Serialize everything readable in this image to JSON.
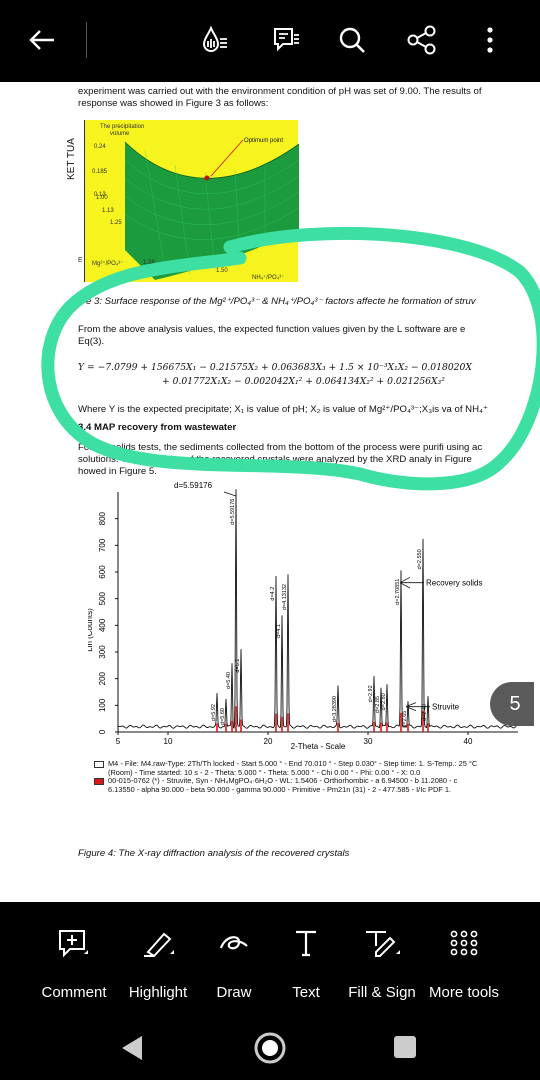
{
  "top_toolbar": {
    "back": "back-arrow",
    "icons": [
      "reading-mode",
      "comment-list",
      "search",
      "share",
      "more-vertical"
    ]
  },
  "document": {
    "intro_line1": "experiment was carried out with the environment condition of pH was set of 9.00. The results of",
    "intro_line2": "response was showed in Figure 3 as follows:",
    "surface_fig": {
      "side_label": "KET TUA",
      "zlabel_line1": "The precipitation",
      "zlabel_line2": "volume",
      "optimum_label": "Optimum point",
      "z_ticks": [
        "0.24",
        "0.185",
        "0.13"
      ],
      "xlabel": "Mg²⁺/PO₄³⁻",
      "ylabel": "NH₄⁺/PO₄³⁻",
      "e_label": "E",
      "x_ticks": [
        "1.00",
        "1.13",
        "1.25",
        "1.38"
      ],
      "y_ticks": [
        "1.00",
        "1.50"
      ]
    },
    "figure3_caption": "e 3: Surface response of the Mg²⁺/PO₄³⁻ & NH₄⁺/PO₄³⁻ factors affecte        he formation of struv",
    "para1_line1": "From the above analysis values, the expected function values given by the L      software are e",
    "para1_line2": "Eq(3).",
    "eq_line1": "Y = −7.0799 + 156675X₁ − 0.21575X₂ + 0.063683X₃ + 1.5 × 10⁻³X₁X₂ − 0.018020X",
    "eq_line2": "+ 0.01772X₁X₂ − 0.002042X₁² + 0.064134X₂² + 0.021256X₃²",
    "para2": "Where Y is the expected precipitate; X₁ is value of pH; X₂ is value of Mg²⁺/PO₄³⁻;X₃is va      of NH₄⁺",
    "section_heading": "3.4 MAP recovery from wastewater",
    "para3_line1": "For the solids tests, the sediments collected from the bottom of the process were purifi      using ac",
    "para3_line2": "solutions. The properties of the recovered crystals were analyzed by the XRD analy      in Figure",
    "para3_line3": "howed in Figure 5.",
    "legend_lines": [
      "M4 - File: M4.raw-Type: 2Th/Th locked - Start 5.000 ° - End 70.010 ° - Step 0.030° - Step time: 1. S-Temp.: 25 °C",
      "(Room) - Time started: 10 s - 2 - Theta: 5.000 ° - Theta: 5.000 ° - Chi 0.00 ° - Phi: 0.00 ° - X: 0.0",
      "00-015-0762 (*) - Struvite, Syn - NH₄MgPO₄·6H₂O - WL: 1.5406 - Orthorhombic - a 6.94500 - b 11.2080 - c",
      "6.13550 - alpha 90.000 - beta 90.000 - gamma 90.000 - Primitive - Pm21n (31) - 2 - 477.585 - I/Ic PDF 1."
    ],
    "figure4_caption": "Figure 4: The X-ray diffraction analysis of the recovered crystals",
    "page_number": "5"
  },
  "chart_data": {
    "type": "line",
    "title": "",
    "xlabel": "2-Theta - Scale",
    "ylabel": "Lin (Counts)",
    "xlim": [
      5,
      45
    ],
    "ylim": [
      0,
      900
    ],
    "x_ticks": [
      "5",
      "10",
      "20",
      "30",
      "40"
    ],
    "y_ticks": [
      "0",
      "100",
      "200",
      "300",
      "400",
      "500",
      "600",
      "700",
      "800"
    ],
    "series": [
      {
        "name": "Recovery solids",
        "peaks": [
          {
            "x": 14.9,
            "y": 120,
            "label": "d=5.92"
          },
          {
            "x": 15.8,
            "y": 105,
            "label": "d=5.60"
          },
          {
            "x": 16.4,
            "y": 240,
            "label": "d=5.40"
          },
          {
            "x": 16.8,
            "y": 890,
            "label": "d=5.59176"
          },
          {
            "x": 17.3,
            "y": 290,
            "label": "d=5.1"
          },
          {
            "x": 20.8,
            "y": 560,
            "label": "d=4.2"
          },
          {
            "x": 21.4,
            "y": 420,
            "label": "d=4.1"
          },
          {
            "x": 22.0,
            "y": 570,
            "label": "d=4.13132"
          },
          {
            "x": 27.0,
            "y": 150,
            "label": "d=3.28390"
          },
          {
            "x": 30.6,
            "y": 190,
            "label": "d=2.92"
          },
          {
            "x": 31.3,
            "y": 150,
            "label": "d=2.85"
          },
          {
            "x": 31.9,
            "y": 160,
            "label": "d=2.80"
          },
          {
            "x": 33.3,
            "y": 590,
            "label": "d=2.70851"
          },
          {
            "x": 34.0,
            "y": 95,
            "label": "d=2.65"
          },
          {
            "x": 35.5,
            "y": 700,
            "label": "d=2.550"
          },
          {
            "x": 36.0,
            "y": 120,
            "label": "d=2.49"
          }
        ]
      },
      {
        "name": "Struvite",
        "color": "#d81a1a"
      }
    ],
    "top_annotation": "d=5.59176",
    "legend_placement": "right"
  },
  "bottom_toolbar": {
    "tools": [
      {
        "label": "Comment",
        "icon": "comment-add-icon"
      },
      {
        "label": "Highlight",
        "icon": "highlight-pen-icon"
      },
      {
        "label": "Draw",
        "icon": "draw-icon"
      },
      {
        "label": "Text",
        "icon": "text-icon"
      },
      {
        "label": "Fill & Sign",
        "icon": "fill-sign-icon"
      },
      {
        "label": "More tools",
        "icon": "grid-icon"
      }
    ]
  },
  "colors": {
    "annotation_stroke": "#3de0a2",
    "surface_yellow": "#f6f31f",
    "surface_green": "#1b9a3e",
    "struvite_red": "#d81a1a"
  }
}
